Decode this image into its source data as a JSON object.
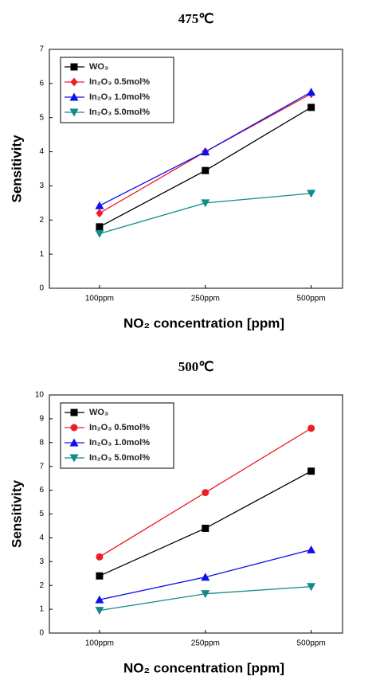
{
  "chart_data": [
    {
      "type": "line",
      "title": "475℃",
      "x_label": "NO₂ concentration [ppm]",
      "y_label": "Sensitivity",
      "categories": [
        "100ppm",
        "250ppm",
        "500ppm"
      ],
      "ylim": [
        0,
        7
      ],
      "yticks": [
        0,
        1,
        2,
        3,
        4,
        5,
        6,
        7
      ],
      "legend": "upper-left",
      "series": [
        {
          "name": "WO₃",
          "color": "#000000",
          "marker": "square",
          "values": [
            1.8,
            3.45,
            5.3
          ]
        },
        {
          "name": "In₂O₃ 0.5mol%",
          "color": "#ee1c24",
          "marker": "diamond",
          "values": [
            2.2,
            4.0,
            5.7
          ]
        },
        {
          "name": "In₂O₃ 1.0mol%",
          "color": "#1010ee",
          "marker": "triangle-up",
          "values": [
            2.42,
            4.0,
            5.75
          ]
        },
        {
          "name": "In₂O₃ 5.0mol%",
          "color": "#138a8a",
          "marker": "triangle-down",
          "values": [
            1.6,
            2.5,
            2.78
          ]
        }
      ]
    },
    {
      "type": "line",
      "title": "500℃",
      "x_label": "NO₂ concentration [ppm]",
      "y_label": "Sensitivity",
      "categories": [
        "100ppm",
        "250ppm",
        "500ppm"
      ],
      "ylim": [
        0,
        10
      ],
      "yticks": [
        0,
        1,
        2,
        3,
        4,
        5,
        6,
        7,
        8,
        9,
        10
      ],
      "legend": "upper-left",
      "series": [
        {
          "name": "WO₃",
          "color": "#000000",
          "marker": "square",
          "values": [
            2.4,
            4.4,
            6.8
          ]
        },
        {
          "name": "In₂O₃ 0.5mol%",
          "color": "#ee1c24",
          "marker": "circle",
          "values": [
            3.2,
            5.9,
            8.6
          ]
        },
        {
          "name": "In₂O₃ 1.0mol%",
          "color": "#1010ee",
          "marker": "triangle-up",
          "values": [
            1.4,
            2.35,
            3.5
          ]
        },
        {
          "name": "In₂O₃ 5.0mol%",
          "color": "#138a8a",
          "marker": "triangle-down",
          "values": [
            0.95,
            1.65,
            1.95
          ]
        }
      ]
    }
  ]
}
